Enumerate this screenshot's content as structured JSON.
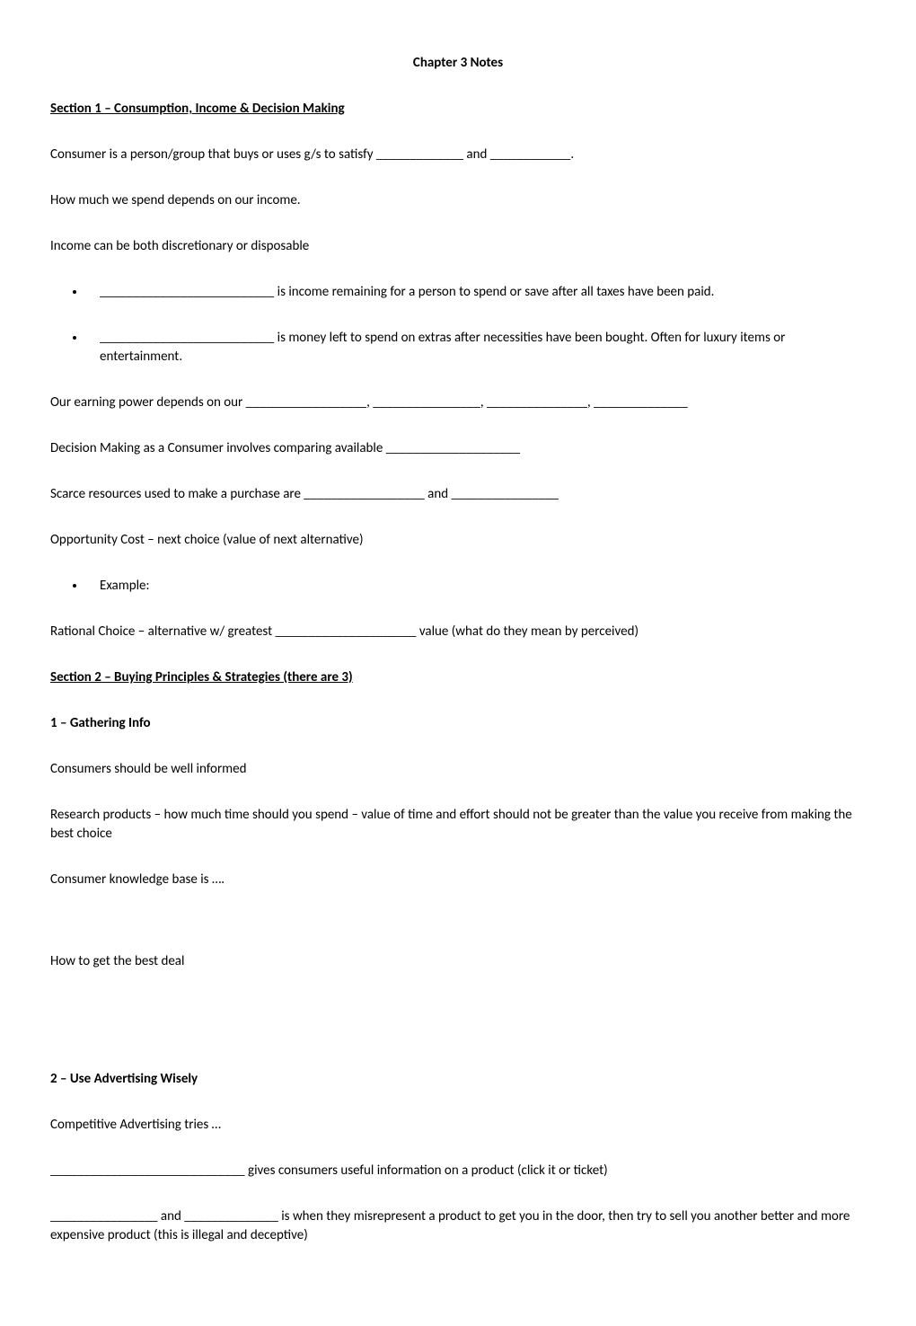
{
  "title": "Chapter 3 Notes",
  "section1": {
    "header": "Section 1 – Consumption, Income & Decision Making",
    "p1": "Consumer is a person/group that buys or uses g/s to satisfy _____________ and ____________.",
    "p2": "How much we spend depends on our income.",
    "p3": "Income can be both discretionary or disposable",
    "bullet1": "__________________________ is income remaining for a person to spend or save after all taxes have been paid.",
    "bullet2": "__________________________ is money left to spend on extras after necessities have been bought.  Often for luxury items or entertainment.",
    "p4": "Our earning power depends on our __________________, ________________, _______________, ______________",
    "p5": "Decision Making as a Consumer involves comparing available ____________________",
    "p6": "Scarce resources used to make a purchase are __________________ and ________________",
    "p7": "Opportunity Cost – next choice (value of next alternative)",
    "bullet3": "Example:",
    "p8": "Rational Choice – alternative w/ greatest _____________________ value (what do they mean by perceived)"
  },
  "section2": {
    "header": "Section 2 – Buying Principles & Strategies  (there are 3)",
    "sub1_header": "1 – Gathering Info",
    "sub1_p1": "Consumers should be well informed",
    "sub1_p2": "Research products – how much time should you spend – value of time and effort should not be greater than the value you receive from making the best choice",
    "sub1_p3": "Consumer knowledge base is ….",
    "sub1_p4": "How to get the best deal",
    "sub2_header": "2 – Use Advertising Wisely",
    "sub2_p1": "Competitive Advertising tries …",
    "sub2_p2": "_____________________________ gives consumers useful information on a product  (click it or ticket)",
    "sub2_p3": "________________ and ______________ is when they misrepresent a product to get you in the door, then try to sell you another better and more expensive product  (this is illegal and deceptive)"
  }
}
